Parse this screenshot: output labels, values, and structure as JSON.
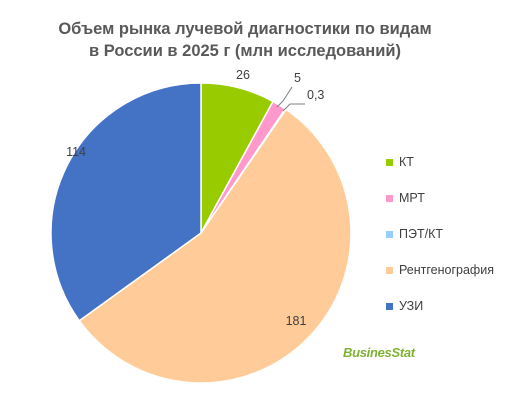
{
  "chart_data": {
    "type": "pie",
    "title": [
      "Объем рынка лучевой диагностики по видам",
      "в России в 2025 г (млн исследований)"
    ],
    "slices": [
      {
        "label": "КТ",
        "value": 26,
        "display": "26",
        "color": "#99cc00"
      },
      {
        "label": "МРТ",
        "value": 5,
        "display": "5",
        "color": "#ff99cc"
      },
      {
        "label": "ПЭТ/КТ",
        "value": 0.3,
        "display": "0,3",
        "color": "#99ccff"
      },
      {
        "label": "Рентгенография",
        "value": 181,
        "display": "181",
        "color": "#ffcc99"
      },
      {
        "label": "УЗИ",
        "value": 114,
        "display": "114",
        "color": "#4472c4"
      }
    ],
    "legend_position": "right"
  },
  "watermark": "BusinesStat"
}
